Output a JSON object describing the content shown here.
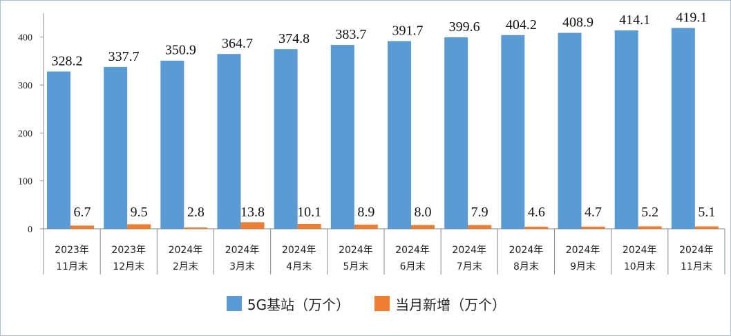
{
  "chart_data": {
    "type": "bar",
    "categories": [
      [
        "2023年",
        "11月末"
      ],
      [
        "2023年",
        "12月末"
      ],
      [
        "2024年",
        "2月末"
      ],
      [
        "2024年",
        "3月末"
      ],
      [
        "2024年",
        "4月末"
      ],
      [
        "2024年",
        "5月末"
      ],
      [
        "2024年",
        "6月末"
      ],
      [
        "2024年",
        "7月末"
      ],
      [
        "2024年",
        "8月末"
      ],
      [
        "2024年",
        "9月末"
      ],
      [
        "2024年",
        "10月末"
      ],
      [
        "2024年",
        "11月末"
      ]
    ],
    "series": [
      {
        "name": "5G基站（万个）",
        "color": "#5b9bd5",
        "values": [
          328.2,
          337.7,
          350.9,
          364.7,
          374.8,
          383.7,
          391.7,
          399.6,
          404.2,
          408.9,
          414.1,
          419.1
        ],
        "labels": [
          "328.2",
          "337.7",
          "350.9",
          "364.7",
          "374.8",
          "383.7",
          "391.7",
          "399.6",
          "404.2",
          "408.9",
          "414.1",
          "419.1"
        ]
      },
      {
        "name": "当月新增（万个）",
        "color": "#ed7d31",
        "values": [
          6.7,
          9.5,
          2.8,
          13.8,
          10.1,
          8.9,
          8.0,
          7.9,
          4.6,
          4.7,
          5.2,
          5.1
        ],
        "labels": [
          "6.7",
          "9.5",
          "2.8",
          "13.8",
          "10.1",
          "8.9",
          "8.0",
          "7.9",
          "4.6",
          "4.7",
          "5.2",
          "5.1"
        ]
      }
    ],
    "yticks": [
      0,
      100,
      200,
      300,
      400
    ],
    "ylim": [
      0,
      450
    ],
    "legend_position": "bottom"
  }
}
